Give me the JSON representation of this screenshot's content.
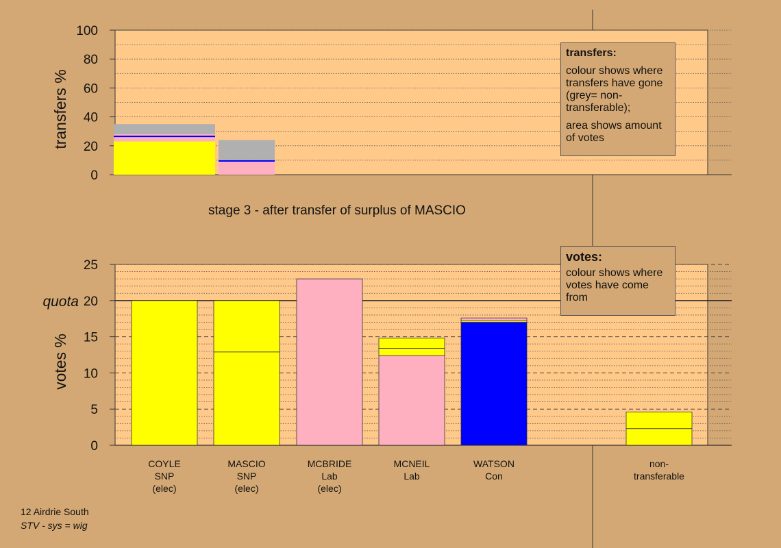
{
  "chart_data": [
    {
      "type": "bar",
      "title": "stage 3 - after transfer of surplus of MASCIO",
      "ylabel": "transfers %",
      "ylim": [
        0,
        100
      ],
      "yticks": [
        0,
        20,
        40,
        60,
        80,
        100
      ],
      "grid": true,
      "stacked": true,
      "bars": [
        {
          "segments": [
            {
              "from": 0,
              "to": 23,
              "color": "#ffff00"
            },
            {
              "from": 23,
              "to": 26,
              "color": "#ffb0c0"
            },
            {
              "from": 26,
              "to": 27,
              "color": "#0000ff"
            },
            {
              "from": 27,
              "to": 28,
              "color": "#ffb0c0"
            },
            {
              "from": 28,
              "to": 35,
              "color": "#b0b0b0"
            }
          ]
        },
        {
          "segments": [
            {
              "from": 0,
              "to": 9,
              "color": "#ffb0c0"
            },
            {
              "from": 9,
              "to": 10,
              "color": "#0000ff"
            },
            {
              "from": 10,
              "to": 24,
              "color": "#b0b0b0"
            }
          ]
        }
      ]
    },
    {
      "type": "bar",
      "ylabel": "votes %",
      "ylim": [
        0,
        25
      ],
      "yticks": [
        0,
        5,
        10,
        15,
        20,
        25
      ],
      "quota": 20,
      "quota_label": "quota",
      "grid": true,
      "stacked": true,
      "categories": [
        {
          "lines": [
            "COYLE",
            "SNP",
            "(elec)"
          ]
        },
        {
          "lines": [
            "MASCIO",
            "SNP",
            "(elec)"
          ]
        },
        {
          "lines": [
            "MCBRIDE",
            "Lab",
            "(elec)"
          ]
        },
        {
          "lines": [
            "MCNEIL",
            "Lab"
          ]
        },
        {
          "lines": [
            "WATSON",
            "Con"
          ]
        },
        {
          "lines": [
            "non-",
            "transferable"
          ]
        }
      ],
      "bars": [
        {
          "segments": [
            {
              "from": 0,
              "to": 20,
              "color": "#ffff00"
            }
          ]
        },
        {
          "segments": [
            {
              "from": 0,
              "to": 12.9,
              "color": "#ffff00"
            },
            {
              "from": 12.9,
              "to": 20,
              "color": "#ffff00"
            }
          ]
        },
        {
          "segments": [
            {
              "from": 0,
              "to": 23,
              "color": "#ffb0c0"
            }
          ]
        },
        {
          "segments": [
            {
              "from": 0,
              "to": 12.4,
              "color": "#ffb0c0"
            },
            {
              "from": 12.4,
              "to": 13.4,
              "color": "#ffff00"
            },
            {
              "from": 13.4,
              "to": 14.8,
              "color": "#ffff00"
            }
          ]
        },
        {
          "segments": [
            {
              "from": 0,
              "to": 17.0,
              "color": "#0000ff"
            },
            {
              "from": 17.0,
              "to": 17.2,
              "color": "#ffff00"
            },
            {
              "from": 17.2,
              "to": 17.6,
              "color": "#ffb0c0"
            }
          ]
        },
        {
          "segments": [
            {
              "from": 0,
              "to": 2.3,
              "color": "#ffff00"
            },
            {
              "from": 2.3,
              "to": 4.6,
              "color": "#ffff00"
            }
          ]
        }
      ]
    }
  ],
  "legend_transfers": {
    "title": "transfers:",
    "p1": "colour shows where transfers have gone (grey= non-transferable);",
    "p2": "area shows amount of votes"
  },
  "legend_votes": {
    "title": "votes:",
    "p1": "colour shows where votes have come from"
  },
  "footer": {
    "ward": "12 Airdrie South",
    "system": "STV - sys = wig"
  },
  "colors": {
    "background": "#d4a874",
    "panel": "#ffc98a",
    "snp": "#ffff00",
    "lab": "#ffb0c0",
    "con": "#0000ff",
    "non_transferable": "#b0b0b0"
  }
}
